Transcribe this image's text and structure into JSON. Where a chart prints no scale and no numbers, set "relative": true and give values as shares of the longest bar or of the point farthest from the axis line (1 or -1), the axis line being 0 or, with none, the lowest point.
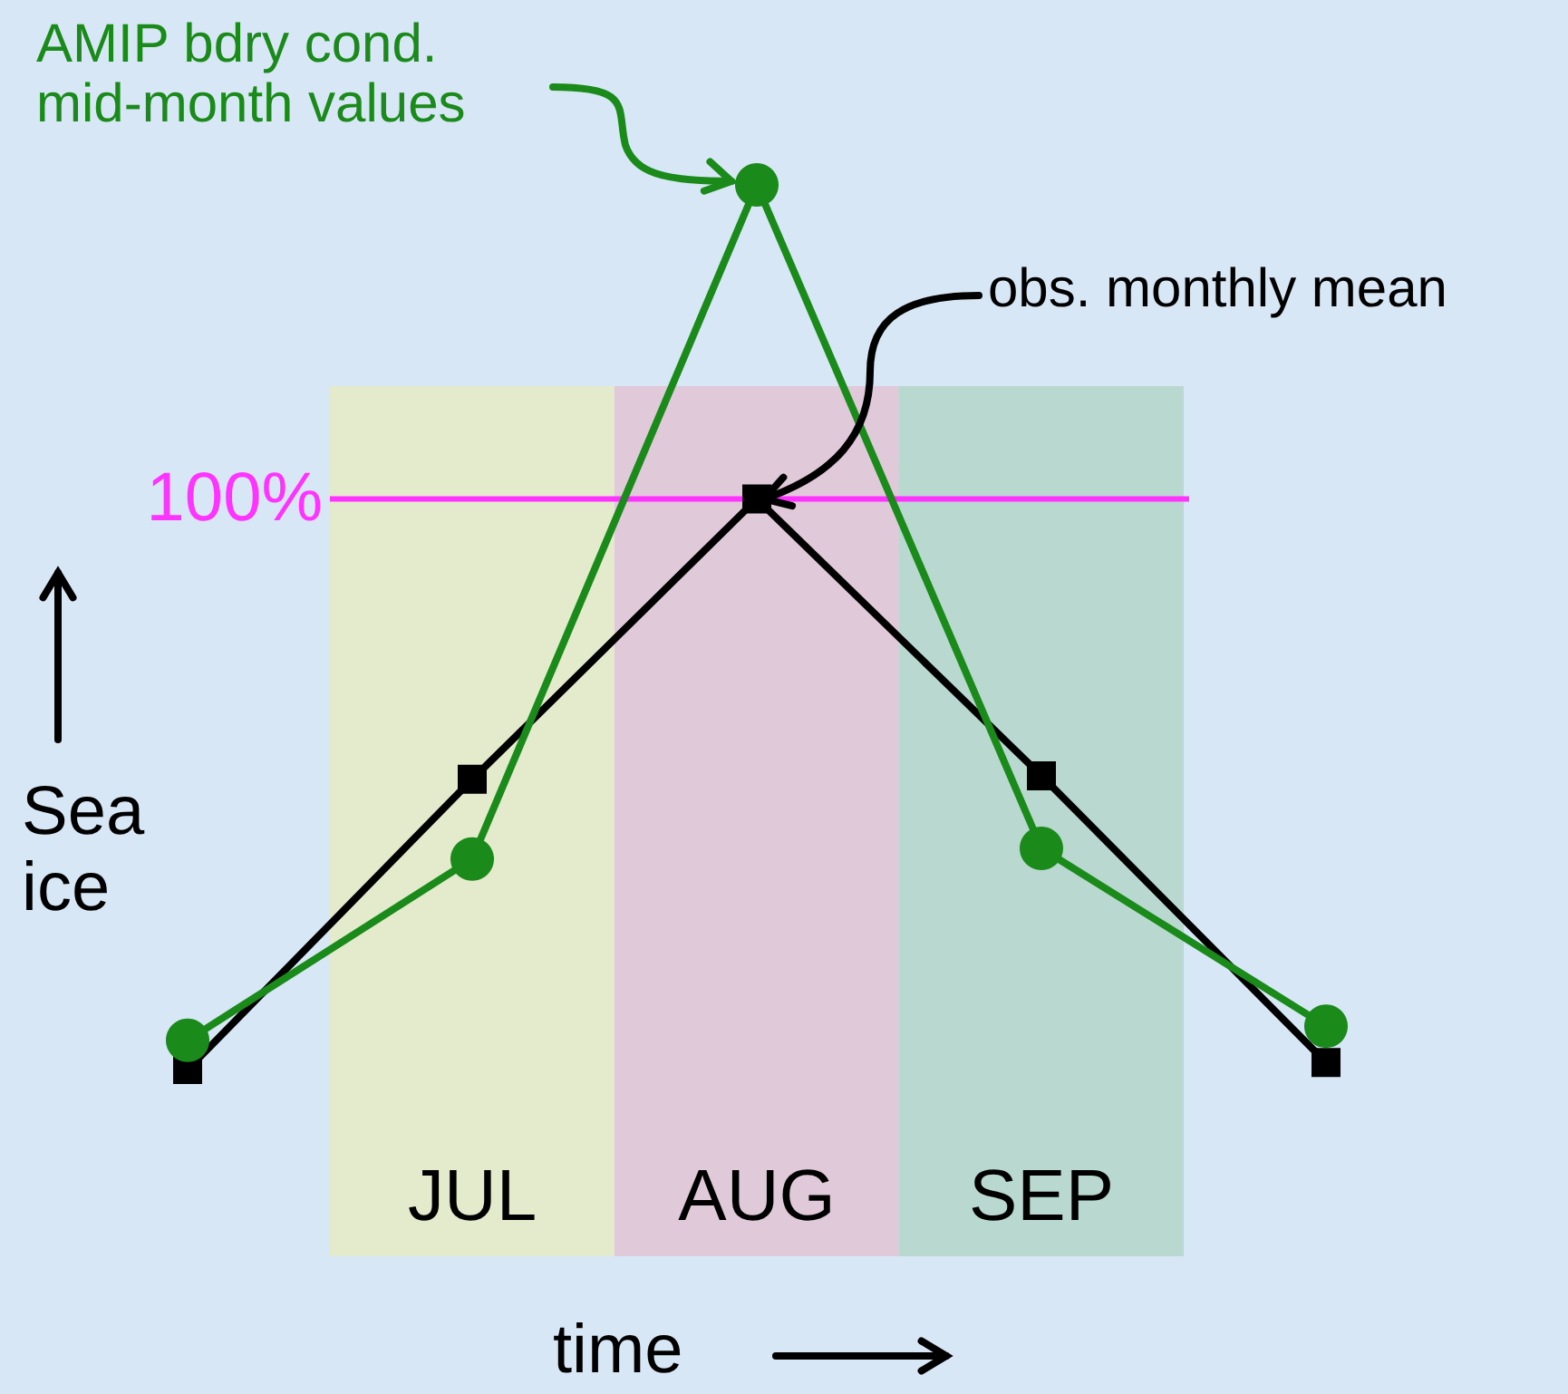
{
  "chart_data": {
    "type": "line",
    "relative": true,
    "xlabel": "time",
    "ylabel": "Sea ice",
    "categories": [
      null,
      "JUL",
      "AUG",
      "SEP",
      null
    ],
    "series": [
      {
        "name": null,
        "color": "#000000",
        "marker": "square",
        "values": [
          0,
          0.328,
          0.645,
          0.332,
          0.008
        ]
      },
      {
        "name": null,
        "color": "#1a8a1a",
        "marker": "circle",
        "values": [
          0.033,
          0.238,
          1,
          0.25,
          0.049
        ]
      }
    ],
    "bands": [
      {
        "axis": "x",
        "from": "JUL",
        "to": "JUL",
        "color": "#e3ebcc"
      },
      {
        "axis": "x",
        "from": "AUG",
        "to": "AUG",
        "color": "#e0c9d9"
      },
      {
        "axis": "x",
        "from": "SEP",
        "to": "SEP",
        "color": "#b9d9d0"
      }
    ],
    "ref_lines": [
      {
        "axis": "y",
        "value": 0.645,
        "color": "#ff33ff"
      }
    ],
    "annotations": [
      "AMIP bdry cond. mid-month values",
      "obs. monthly mean",
      "100%"
    ],
    "grid": false
  }
}
